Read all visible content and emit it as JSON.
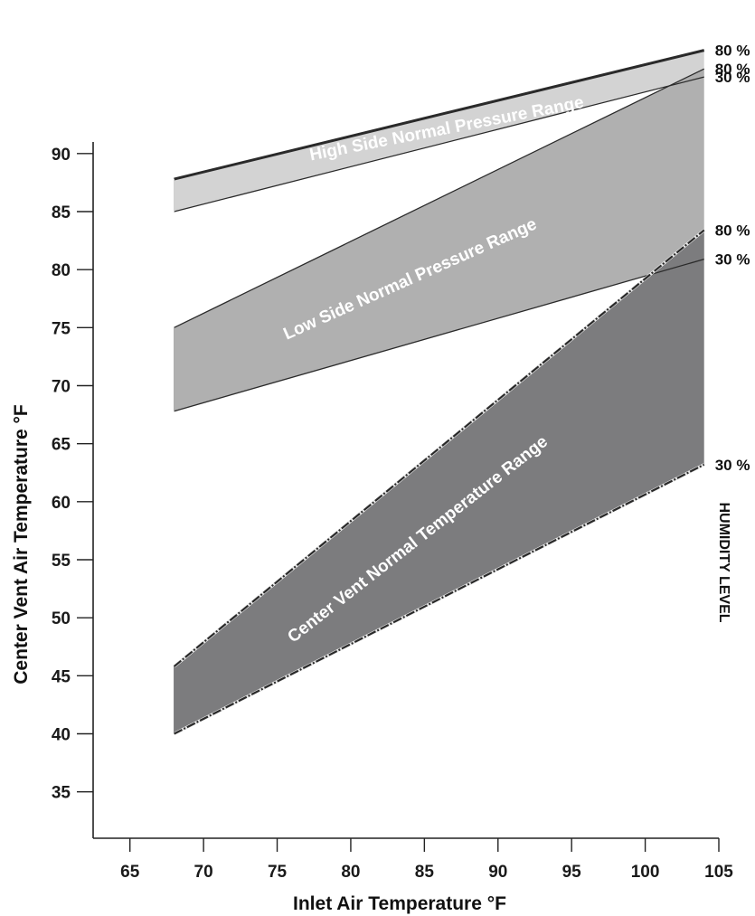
{
  "chart_data": {
    "type": "area",
    "xlabel": "Inlet Air Temperature °F",
    "ylabel": "Center Vent Air Temperature °F",
    "xlim": [
      62.5,
      105
    ],
    "ylim": [
      31,
      91
    ],
    "xticks": [
      65,
      70,
      75,
      80,
      85,
      90,
      95,
      100,
      105
    ],
    "yticks": [
      35,
      40,
      45,
      50,
      55,
      60,
      65,
      70,
      75,
      80,
      85,
      90
    ],
    "humidity_title": "HUMIDITY LEVEL",
    "bands": [
      {
        "name": "High Side Normal Pressure Range",
        "color": "#cfcfcf",
        "upper": {
          "x": [
            68,
            104
          ],
          "y": [
            87.8,
            98.9
          ],
          "humidity": "80 %"
        },
        "lower": {
          "x": [
            68,
            104
          ],
          "y": [
            85.0,
            96.6
          ],
          "humidity": "30 %"
        }
      },
      {
        "name": "Low Side Normal Pressure Range",
        "color": "#a9a9a9",
        "upper": {
          "x": [
            68,
            104
          ],
          "y": [
            75.0,
            97.3
          ],
          "humidity": "80 %"
        },
        "lower": {
          "x": [
            68,
            104
          ],
          "y": [
            67.8,
            80.9
          ],
          "humidity": "30 %"
        }
      },
      {
        "name": "Center Vent Normal Temperature Range",
        "color": "#7c7c7e",
        "upper": {
          "x": [
            68,
            104
          ],
          "y": [
            45.8,
            83.4
          ],
          "humidity": "80 %"
        },
        "lower": {
          "x": [
            68,
            104
          ],
          "y": [
            40.0,
            63.2
          ],
          "humidity": "30 %"
        }
      }
    ]
  }
}
